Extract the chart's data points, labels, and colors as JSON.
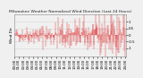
{
  "title": "Milwaukee Weather Normalized Wind Direction (Last 24 Hours)",
  "ylabel": "Wind Dir.",
  "n_points": 288,
  "ylim": [
    -1.6,
    1.6
  ],
  "bar_color": "#dd0000",
  "bg_color": "#f0f0f0",
  "plot_bg_color": "#f0f0f0",
  "grid_color": "#bbbbbb",
  "title_fontsize": 3.2,
  "tick_fontsize": 2.8,
  "ylabel_fontsize": 3.0,
  "seed": 42,
  "figsize": [
    1.6,
    0.87
  ],
  "dpi": 100
}
